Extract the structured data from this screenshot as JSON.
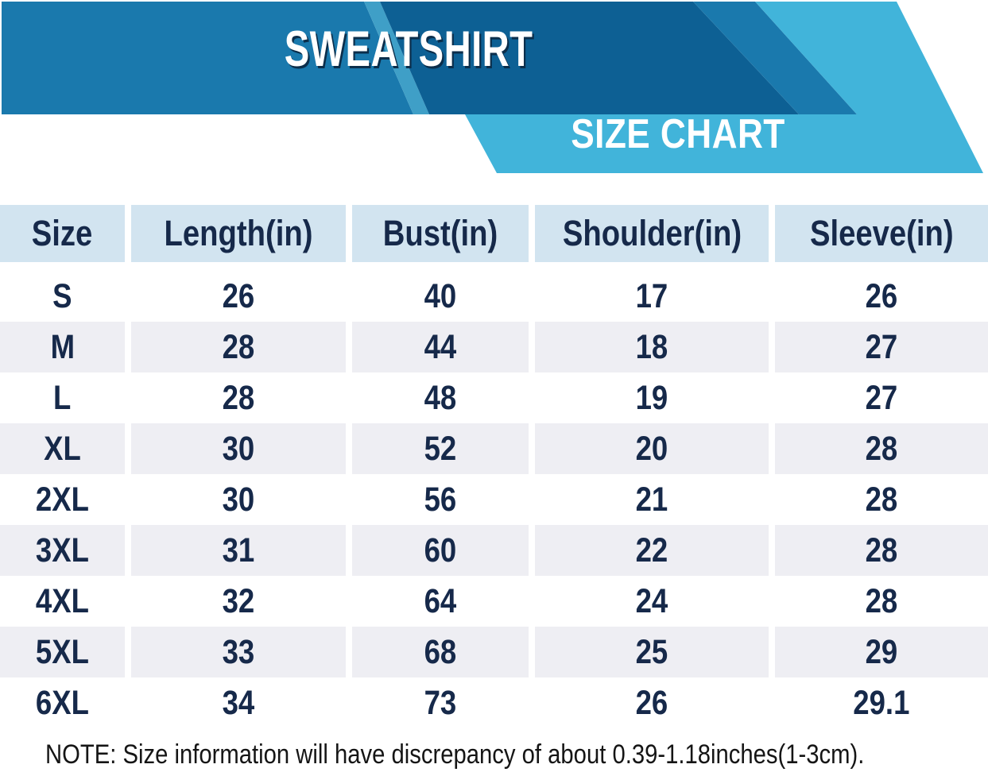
{
  "banner": {
    "title": "SWEATSHIRT",
    "subtitle": "SIZE CHART"
  },
  "colors": {
    "medium_blue": "#1a79ad",
    "dark_blue": "#0d6094",
    "sliver_blue": "#3f9fc7",
    "teal": "#41b4da",
    "title_shadow": "#0b2e4b",
    "header_bg": "#d2e4f0",
    "alt_row_bg": "#eeeef3",
    "navy": "#16294a",
    "note_color": "#151515"
  },
  "table": {
    "columns": [
      "Size",
      "Length(in)",
      "Bust(in)",
      "Shoulder(in)",
      "Sleeve(in)"
    ],
    "rows": [
      [
        "S",
        "26",
        "40",
        "17",
        "26"
      ],
      [
        "M",
        "28",
        "44",
        "18",
        "27"
      ],
      [
        "L",
        "28",
        "48",
        "19",
        "27"
      ],
      [
        "XL",
        "30",
        "52",
        "20",
        "28"
      ],
      [
        "2XL",
        "30",
        "56",
        "21",
        "28"
      ],
      [
        "3XL",
        "31",
        "60",
        "22",
        "28"
      ],
      [
        "4XL",
        "32",
        "64",
        "24",
        "28"
      ],
      [
        "5XL",
        "33",
        "68",
        "25",
        "29"
      ],
      [
        "6XL",
        "34",
        "73",
        "26",
        "29.1"
      ]
    ]
  },
  "chart_data": {
    "type": "table",
    "title": "SWEATSHIRT SIZE CHART",
    "columns": [
      "Size",
      "Length(in)",
      "Bust(in)",
      "Shoulder(in)",
      "Sleeve(in)"
    ],
    "rows": [
      [
        "S",
        26,
        40,
        17,
        26
      ],
      [
        "M",
        28,
        44,
        18,
        27
      ],
      [
        "L",
        28,
        48,
        19,
        27
      ],
      [
        "XL",
        30,
        52,
        20,
        28
      ],
      [
        "2XL",
        30,
        56,
        21,
        28
      ],
      [
        "3XL",
        31,
        60,
        22,
        28
      ],
      [
        "4XL",
        32,
        64,
        24,
        28
      ],
      [
        "5XL",
        33,
        68,
        25,
        29
      ],
      [
        "6XL",
        34,
        73,
        26,
        29.1
      ]
    ]
  },
  "note": "NOTE: Size information will have discrepancy of about 0.39-1.18inches(1-3cm)."
}
